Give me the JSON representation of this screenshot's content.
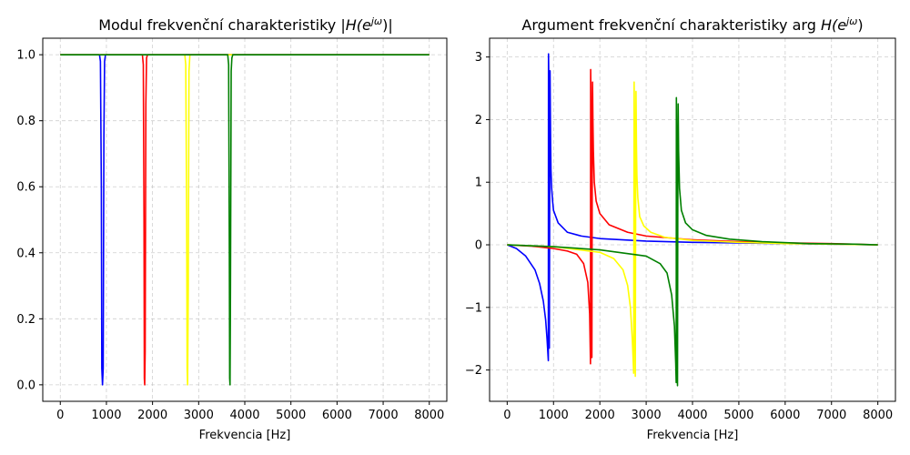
{
  "chart_data": [
    {
      "type": "line",
      "title_prefix": "Modul frekvenční charakteristiky |",
      "title_math": "H(e",
      "title_sup": "jω",
      "title_suffix": ")|",
      "xlabel": "Frekvencia [Hz]",
      "ylabel": "",
      "xlim": [
        -380,
        8380
      ],
      "ylim": [
        -0.05,
        1.05
      ],
      "xticks": [
        0,
        1000,
        2000,
        3000,
        4000,
        5000,
        6000,
        7000,
        8000
      ],
      "yticks": [
        0.0,
        0.2,
        0.4,
        0.6,
        0.8,
        1.0
      ],
      "xtick_labels": [
        "0",
        "1000",
        "2000",
        "3000",
        "4000",
        "5000",
        "6000",
        "7000",
        "8000"
      ],
      "ytick_labels": [
        "0.0",
        "0.2",
        "0.4",
        "0.6",
        "0.8",
        "1.0"
      ],
      "grid": true,
      "series": [
        {
          "color": "#0000ff",
          "x": [
            0,
            850,
            870,
            890,
            900,
            915,
            930,
            945,
            960,
            980,
            1000,
            8000
          ],
          "y": [
            1.0,
            1.0,
            0.98,
            0.6,
            0.05,
            0.0,
            0.05,
            0.75,
            0.98,
            1.0,
            1.0,
            1.0
          ]
        },
        {
          "color": "#ff0000",
          "x": [
            0,
            1780,
            1800,
            1815,
            1822,
            1830,
            1840,
            1855,
            1870,
            1890,
            8000
          ],
          "y": [
            1.0,
            1.0,
            0.97,
            0.5,
            0.02,
            0.0,
            0.1,
            0.85,
            0.99,
            1.0,
            1.0
          ]
        },
        {
          "color": "#ffff00",
          "x": [
            0,
            2700,
            2720,
            2740,
            2750,
            2760,
            2775,
            2790,
            2810,
            8000
          ],
          "y": [
            1.0,
            1.0,
            0.97,
            0.5,
            0.05,
            0.0,
            0.3,
            0.95,
            1.0,
            1.0
          ]
        },
        {
          "color": "#008000",
          "x": [
            0,
            3630,
            3650,
            3665,
            3672,
            3680,
            3690,
            3705,
            3720,
            3740,
            8000
          ],
          "y": [
            1.0,
            1.0,
            0.97,
            0.4,
            0.02,
            0.0,
            0.3,
            0.95,
            0.99,
            1.0,
            1.0
          ]
        }
      ]
    },
    {
      "type": "line",
      "title_prefix": "Argument frekvenční charakteristiky arg ",
      "title_math": "H(e",
      "title_sup": "jω",
      "title_suffix": ")",
      "xlabel": "Frekvencia [Hz]",
      "ylabel": "",
      "xlim": [
        -380,
        8380
      ],
      "ylim": [
        -2.5,
        3.3
      ],
      "xticks": [
        0,
        1000,
        2000,
        3000,
        4000,
        5000,
        6000,
        7000,
        8000
      ],
      "yticks": [
        -2,
        -1,
        0,
        1,
        2,
        3
      ],
      "xtick_labels": [
        "0",
        "1000",
        "2000",
        "3000",
        "4000",
        "5000",
        "6000",
        "7000",
        "8000"
      ],
      "ytick_labels": [
        "−2",
        "−1",
        "0",
        "1",
        "2",
        "3"
      ],
      "grid": true,
      "series": [
        {
          "color": "#0000ff",
          "x": [
            0,
            200,
            400,
            600,
            700,
            780,
            830,
            860,
            880,
            888,
            892,
            900,
            905,
            910,
            918,
            925,
            932,
            938,
            945,
            960,
            980,
            1000,
            1100,
            1300,
            1600,
            2000,
            3000,
            4000,
            5000,
            6000,
            7000,
            8000
          ],
          "y": [
            0.0,
            -0.06,
            -0.18,
            -0.4,
            -0.62,
            -0.9,
            -1.2,
            -1.5,
            -1.75,
            -1.85,
            3.05,
            2.6,
            0.6,
            -1.65,
            1.0,
            2.78,
            2.1,
            1.6,
            1.2,
            0.9,
            0.7,
            0.55,
            0.35,
            0.2,
            0.14,
            0.1,
            0.06,
            0.04,
            0.03,
            0.02,
            0.01,
            0.0
          ]
        },
        {
          "color": "#ff0000",
          "x": [
            0,
            500,
            1000,
            1300,
            1500,
            1650,
            1740,
            1780,
            1798,
            1802,
            1810,
            1820,
            1828,
            1835,
            1842,
            1850,
            1860,
            1880,
            1920,
            2000,
            2200,
            2600,
            3000,
            4000,
            5000,
            6000,
            7000,
            8000
          ],
          "y": [
            0.0,
            -0.02,
            -0.06,
            -0.1,
            -0.15,
            -0.3,
            -0.6,
            -1.1,
            -1.9,
            2.8,
            2.2,
            0.4,
            -1.8,
            1.0,
            2.6,
            2.0,
            1.5,
            1.0,
            0.7,
            0.5,
            0.32,
            0.2,
            0.14,
            0.08,
            0.05,
            0.03,
            0.02,
            0.0
          ]
        },
        {
          "color": "#ffff00",
          "x": [
            0,
            1000,
            2000,
            2300,
            2500,
            2600,
            2660,
            2700,
            2720,
            2730,
            2740,
            2748,
            2755,
            2765,
            2772,
            2780,
            2790,
            2800,
            2820,
            2860,
            2950,
            3100,
            3400,
            4000,
            5000,
            6000,
            7000,
            8000
          ],
          "y": [
            0.0,
            -0.03,
            -0.12,
            -0.22,
            -0.4,
            -0.65,
            -1.0,
            -1.5,
            -1.85,
            -2.05,
            2.6,
            1.8,
            -0.5,
            -2.1,
            0.4,
            2.45,
            1.6,
            1.1,
            0.75,
            0.45,
            0.3,
            0.2,
            0.12,
            0.07,
            0.04,
            0.02,
            0.01,
            0.0
          ]
        },
        {
          "color": "#008000",
          "x": [
            0,
            1000,
            2000,
            3000,
            3300,
            3450,
            3550,
            3610,
            3638,
            3648,
            3652,
            3660,
            3668,
            3676,
            3682,
            3690,
            3700,
            3720,
            3760,
            3850,
            4000,
            4300,
            4800,
            5500,
            6500,
            7500,
            8000
          ],
          "y": [
            0.0,
            -0.03,
            -0.08,
            -0.18,
            -0.3,
            -0.45,
            -0.8,
            -1.3,
            -1.9,
            -2.2,
            2.35,
            1.6,
            -0.9,
            -2.25,
            0.5,
            2.25,
            1.5,
            0.9,
            0.55,
            0.35,
            0.24,
            0.15,
            0.09,
            0.05,
            0.02,
            0.01,
            0.0
          ]
        }
      ]
    }
  ]
}
